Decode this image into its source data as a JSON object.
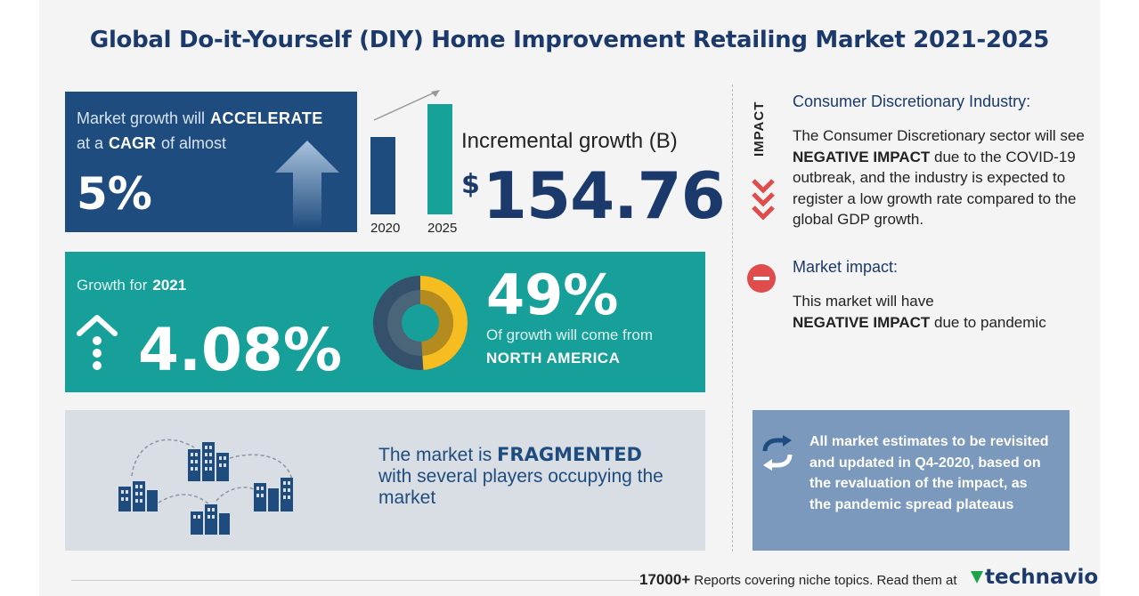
{
  "title": "Global Do-it-Yourself (DIY) Home Improvement Retailing Market 2021-2025",
  "growth_box": {
    "line1_prefix": "Market growth will",
    "line1_bold": "ACCELERATE",
    "line2_prefix": "at a",
    "line2_bold": "CAGR",
    "line2_suffix": "of almost",
    "value": "5%"
  },
  "chart_data": {
    "type": "bar",
    "categories": [
      "2020",
      "2025"
    ],
    "values": [
      70,
      100
    ],
    "colors": [
      "#1f4c7e",
      "#16a199"
    ]
  },
  "incremental": {
    "label": "Incremental growth (B)",
    "currency": "$",
    "value": "154.76"
  },
  "growth_2021": {
    "prefix": "Growth for",
    "year": "2021",
    "value": "4.08%",
    "share": "49%",
    "share_text": "Of growth will come from",
    "region": "NORTH AMERICA",
    "share_fraction": 0.49
  },
  "fragmented": {
    "prefix": "The market is",
    "bold": "FRAGMENTED",
    "suffix": "with several players occupying the market"
  },
  "impact": {
    "vertical_label": "IMPACT",
    "industry_title": "Consumer Discretionary Industry:",
    "industry_text_1": "The Consumer Discretionary sector will see",
    "industry_bold": "NEGATIVE IMPACT",
    "industry_text_2": "due to the COVID-19 outbreak, and the industry is expected to register a low growth rate compared to the global GDP growth.",
    "market_title": "Market impact:",
    "market_text_1": "This market will have",
    "market_bold": "NEGATIVE IMPACT",
    "market_text_2": "due to pandemic"
  },
  "note": {
    "text": "All market estimates to be revisited and updated in Q4-2020, based on the revaluation of the impact, as the pandemic spread plateaus"
  },
  "footer": {
    "count": "17000+",
    "text": "Reports covering niche topics. Read them at",
    "logo": "technavio"
  },
  "colors": {
    "navy": "#1f4c7e",
    "teal": "#17a099",
    "red": "#e04b4b",
    "gold": "#f5bd1f"
  }
}
